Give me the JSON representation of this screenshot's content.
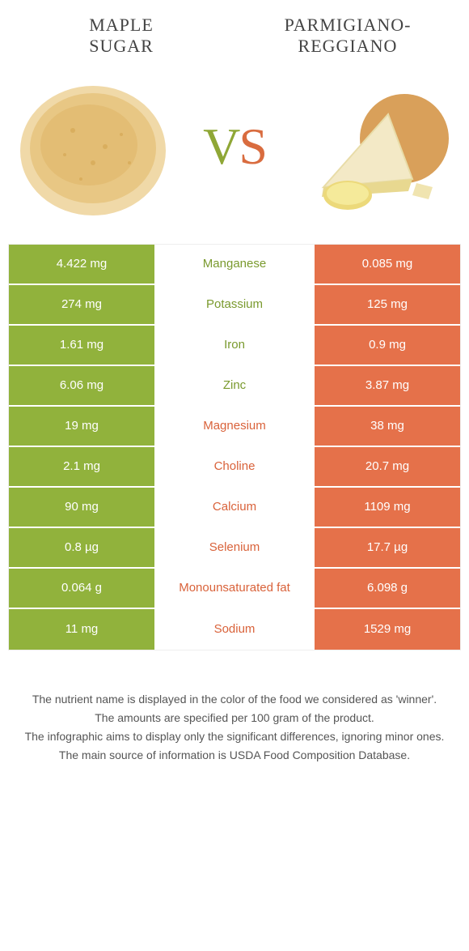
{
  "header": {
    "left_title_line1": "Maple",
    "left_title_line2": "sugar",
    "right_title_line1": "Parmigiano-",
    "right_title_line2": "Reggiano"
  },
  "vs": {
    "v": "V",
    "s": "S"
  },
  "colors": {
    "left": "#91b23c",
    "right": "#e5714a",
    "mid_left": "#7a9a2e",
    "mid_right": "#d9623a",
    "background": "#ffffff"
  },
  "rows": [
    {
      "left": "4.422 mg",
      "label": "Manganese",
      "right": "0.085 mg",
      "winner": "left"
    },
    {
      "left": "274 mg",
      "label": "Potassium",
      "right": "125 mg",
      "winner": "left"
    },
    {
      "left": "1.61 mg",
      "label": "Iron",
      "right": "0.9 mg",
      "winner": "left"
    },
    {
      "left": "6.06 mg",
      "label": "Zinc",
      "right": "3.87 mg",
      "winner": "left"
    },
    {
      "left": "19 mg",
      "label": "Magnesium",
      "right": "38 mg",
      "winner": "right"
    },
    {
      "left": "2.1 mg",
      "label": "Choline",
      "right": "20.7 mg",
      "winner": "right"
    },
    {
      "left": "90 mg",
      "label": "Calcium",
      "right": "1109 mg",
      "winner": "right"
    },
    {
      "left": "0.8 µg",
      "label": "Selenium",
      "right": "17.7 µg",
      "winner": "right"
    },
    {
      "left": "0.064 g",
      "label": "Monounsaturated fat",
      "right": "6.098 g",
      "winner": "right"
    },
    {
      "left": "11 mg",
      "label": "Sodium",
      "right": "1529 mg",
      "winner": "right"
    }
  ],
  "footer": {
    "line1": "The nutrient name is displayed in the color of the food we considered as 'winner'.",
    "line2": "The amounts are specified per 100 gram of the product.",
    "line3": "The infographic aims to display only the significant differences, ignoring minor ones.",
    "line4": "The main source of information is USDA Food Composition Database."
  }
}
